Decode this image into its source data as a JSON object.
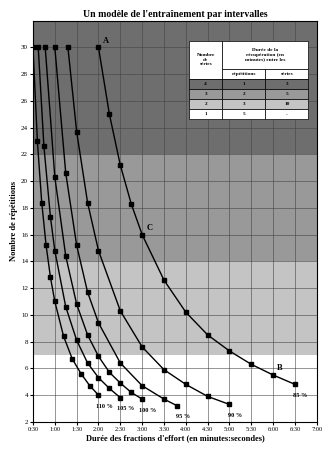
{
  "chart_data": {
    "type": "line",
    "title": "Un modèle de l'entraînement par intervalles",
    "x_label": "Durée des fractions d'effort (en minutes:secondes)",
    "y_label": "Nombre de répétitions",
    "xlim": [
      0.5,
      7.0
    ],
    "ylim": [
      2,
      32
    ],
    "xticks": [
      {
        "value": 0.5,
        "label": "0:30"
      },
      {
        "value": 1.0,
        "label": "1:00"
      },
      {
        "value": 1.5,
        "label": "1:30"
      },
      {
        "value": 2.0,
        "label": "2:00"
      },
      {
        "value": 2.5,
        "label": "2:30"
      },
      {
        "value": 3.0,
        "label": "3:00"
      },
      {
        "value": 3.5,
        "label": "3:30"
      },
      {
        "value": 4.0,
        "label": "4:00"
      },
      {
        "value": 4.5,
        "label": "4:30"
      },
      {
        "value": 5.0,
        "label": "5:00"
      },
      {
        "value": 5.5,
        "label": "5:30"
      },
      {
        "value": 6.0,
        "label": "6:00"
      },
      {
        "value": 6.5,
        "label": "6:30"
      },
      {
        "value": 7.0,
        "label": "7:00"
      }
    ],
    "yticks": [
      2,
      4,
      6,
      8,
      10,
      12,
      14,
      16,
      18,
      20,
      22,
      24,
      26,
      28,
      30
    ],
    "grid": true,
    "series": [
      {
        "name": "110 %",
        "color": "#000000",
        "marker": "square",
        "line_style": "solid",
        "x": [
          0.5,
          0.6,
          0.7,
          0.8,
          0.9,
          1.0,
          1.2,
          1.4,
          1.6,
          1.8,
          2.0
        ],
        "values": [
          30,
          23.0,
          18.4,
          15.2,
          12.8,
          11.0,
          8.4,
          6.7,
          5.6,
          4.7,
          4.0
        ]
      },
      {
        "name": "105 %",
        "color": "#000000",
        "marker": "square",
        "line_style": "solid",
        "x": [
          0.62,
          0.75,
          0.9,
          1.0,
          1.25,
          1.5,
          1.75,
          2.0,
          2.25,
          2.5
        ],
        "values": [
          30,
          22.6,
          17.3,
          14.8,
          10.6,
          8.1,
          6.4,
          5.3,
          4.5,
          3.8
        ]
      },
      {
        "name": "100 %",
        "color": "#000000",
        "marker": "square",
        "line_style": "solid",
        "x": [
          0.78,
          1.0,
          1.25,
          1.5,
          1.75,
          2.0,
          2.25,
          2.5,
          2.75,
          3.0
        ],
        "values": [
          30,
          20.3,
          14.4,
          10.8,
          8.5,
          6.9,
          5.7,
          4.9,
          4.2,
          3.7
        ]
      },
      {
        "name": "95 %",
        "color": "#000000",
        "marker": "square",
        "line_style": "solid",
        "x": [
          1.0,
          1.25,
          1.5,
          1.75,
          2.0,
          2.5,
          3.0,
          3.5,
          3.8
        ],
        "values": [
          30,
          20.6,
          15.2,
          11.7,
          9.4,
          6.4,
          4.7,
          3.7,
          3.2
        ]
      },
      {
        "name": "90 %",
        "color": "#000000",
        "marker": "square",
        "line_style": "solid",
        "x": [
          1.3,
          1.5,
          1.75,
          2.0,
          2.5,
          3.0,
          3.5,
          4.0,
          4.5,
          5.0
        ],
        "values": [
          30,
          23.7,
          18.4,
          14.8,
          10.3,
          7.6,
          5.9,
          4.8,
          3.9,
          3.3
        ]
      },
      {
        "name": "85 %",
        "color": "#000000",
        "marker": "square",
        "line_style": "solid",
        "x": [
          2.0,
          2.25,
          2.5,
          2.75,
          3.0,
          3.5,
          4.0,
          4.5,
          5.0,
          5.5,
          6.0,
          6.5
        ],
        "values": [
          30,
          25.0,
          21.2,
          18.3,
          16.0,
          12.6,
          10.2,
          8.5,
          7.3,
          6.3,
          5.5,
          4.8
        ]
      }
    ],
    "bands": [
      {
        "from": 22,
        "to": 32,
        "color": "#6e6e6e"
      },
      {
        "from": 14,
        "to": 22,
        "color": "#999999"
      },
      {
        "from": 7,
        "to": 14,
        "color": "#c4c4c4"
      },
      {
        "from": 2,
        "to": 7,
        "color": "#ffffff"
      }
    ],
    "annotations": [
      {
        "text": "A",
        "x": 2.0,
        "y": 30
      },
      {
        "text": "B",
        "x": 6.0,
        "y": 5.5
      },
      {
        "text": "C",
        "x": 3.0,
        "y": 16.0
      }
    ],
    "table": {
      "header": {
        "series_col": [
          "Nombre",
          "de",
          "séries"
        ],
        "recovery": [
          "Durée de la",
          "récupération (en",
          "minutes) entre les"
        ],
        "columns": [
          "répétitions",
          "séries"
        ]
      },
      "rows": [
        {
          "series": 4,
          "repetitions": 1,
          "sets": 3,
          "color": "#6e6e6e"
        },
        {
          "series": 3,
          "repetitions": 2,
          "sets": 5,
          "color": "#999999"
        },
        {
          "series": 2,
          "repetitions": 3,
          "sets": 10,
          "color": "#c4c4c4"
        },
        {
          "series": 1,
          "repetitions": 5,
          "sets": "-",
          "color": "#ffffff"
        }
      ]
    }
  }
}
